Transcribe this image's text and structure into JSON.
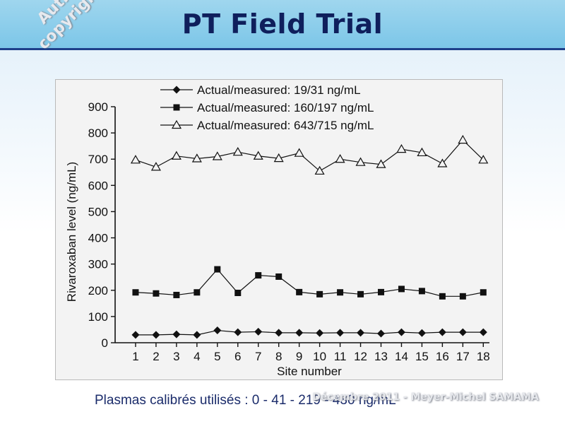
{
  "header": {
    "title": "PT Field Trial",
    "watermark": "Author's copyrights©"
  },
  "footer": {
    "text": "Plasmas calibrés utilisés : 0 - 41 - 219 - 430 ng/mL",
    "credit": "Décembre 2011 - Meyer-Michel SAMAMA"
  },
  "colors": {
    "header_bg": "#7cc6e8",
    "title": "#0f1f5c",
    "footer_text": "#1b2c6b"
  },
  "chart_data": {
    "type": "line",
    "title": "",
    "xlabel": "Site number",
    "ylabel": "Rivaroxaban level (ng/mL)",
    "x": [
      1,
      2,
      3,
      4,
      5,
      6,
      7,
      8,
      9,
      10,
      11,
      12,
      13,
      14,
      15,
      16,
      17,
      18
    ],
    "xlim": [
      0,
      18.3
    ],
    "ylim": [
      0,
      900
    ],
    "yticks": [
      0,
      100,
      200,
      300,
      400,
      500,
      600,
      700,
      800,
      900
    ],
    "grid": false,
    "legend": "top",
    "series": [
      {
        "name": "Actual/measured: 19/31 ng/mL",
        "marker": "diamond",
        "values": [
          30,
          30,
          32,
          30,
          47,
          40,
          42,
          38,
          38,
          37,
          38,
          38,
          35,
          40,
          37,
          40,
          40,
          40
        ]
      },
      {
        "name": "Actual/measured: 160/197 ng/mL",
        "marker": "square",
        "values": [
          192,
          188,
          182,
          192,
          280,
          190,
          257,
          252,
          193,
          185,
          192,
          185,
          193,
          205,
          197,
          177,
          177,
          192
        ]
      },
      {
        "name": "Actual/measured: 643/715 ng/mL",
        "marker": "triangle-open",
        "values": [
          697,
          670,
          712,
          702,
          710,
          727,
          712,
          703,
          723,
          655,
          700,
          688,
          680,
          738,
          725,
          683,
          773,
          697
        ]
      }
    ]
  }
}
